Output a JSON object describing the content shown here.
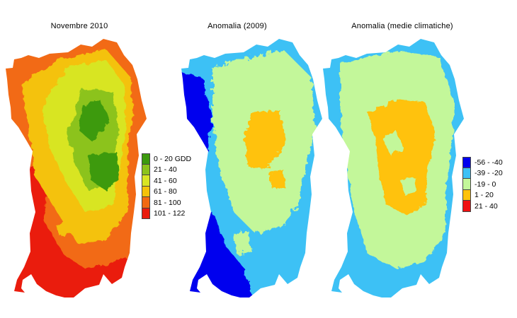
{
  "maps": [
    {
      "title": "Novembre 2010",
      "legend": [
        {
          "label": "0 - 20 GDD",
          "color": "#3c9a0e"
        },
        {
          "label": "21 - 40",
          "color": "#8cc31c"
        },
        {
          "label": "41 - 60",
          "color": "#d8e524"
        },
        {
          "label": "61 - 80",
          "color": "#f4c20a"
        },
        {
          "label": "81 - 100",
          "color": "#f26a12"
        },
        {
          "label": "101 - 122",
          "color": "#ea1b0d"
        }
      ]
    },
    {
      "title": "Anomalia (2009)"
    },
    {
      "title": "Anomalia (medie climatiche)",
      "legend": [
        {
          "label": "-56 - -40",
          "color": "#0000ee"
        },
        {
          "label": "-39 - -20",
          "color": "#3cc1f5"
        },
        {
          "label": "-19 - 0",
          "color": "#c3f79a"
        },
        {
          "label": "1 - 20",
          "color": "#ffc20a"
        },
        {
          "label": "21 - 40",
          "color": "#f01010"
        }
      ]
    }
  ]
}
